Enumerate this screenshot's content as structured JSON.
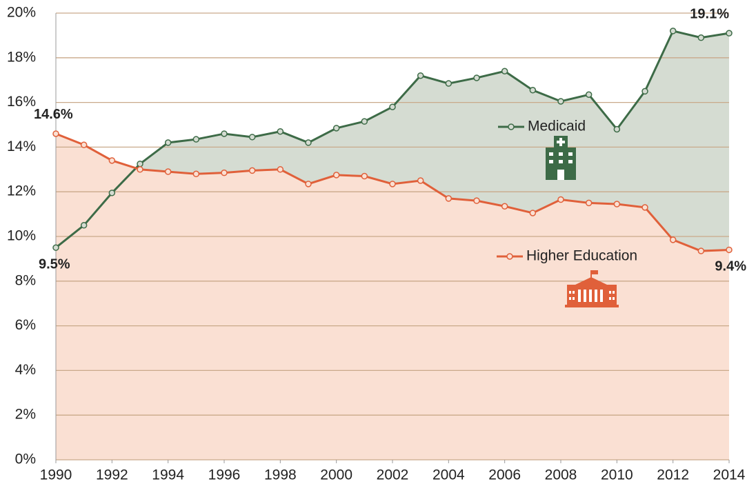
{
  "chart_data": {
    "type": "line",
    "x": [
      1990,
      1991,
      1992,
      1993,
      1994,
      1995,
      1996,
      1997,
      1998,
      1999,
      2000,
      2001,
      2002,
      2003,
      2004,
      2005,
      2006,
      2007,
      2008,
      2009,
      2010,
      2011,
      2012,
      2013,
      2014
    ],
    "series": [
      {
        "name": "Medicaid",
        "color": "#3d6b47",
        "area_color": "#d5dcd2",
        "values": [
          9.5,
          10.5,
          11.95,
          13.25,
          14.2,
          14.35,
          14.6,
          14.45,
          14.7,
          14.2,
          14.85,
          15.15,
          15.8,
          17.2,
          16.85,
          17.1,
          17.4,
          16.55,
          16.05,
          16.35,
          14.8,
          16.5,
          19.2,
          18.9,
          19.1
        ],
        "value_labels": [
          "9.5%",
          null,
          null,
          null,
          null,
          null,
          null,
          null,
          null,
          null,
          null,
          null,
          null,
          null,
          null,
          null,
          null,
          null,
          null,
          null,
          null,
          null,
          null,
          null,
          "19.1%"
        ]
      },
      {
        "name": "Higher Education",
        "color": "#e0603a",
        "area_color": "#fae0d3",
        "values": [
          14.6,
          14.1,
          13.4,
          13.0,
          12.9,
          12.8,
          12.85,
          12.95,
          13.0,
          12.35,
          12.75,
          12.7,
          12.35,
          12.5,
          11.7,
          11.6,
          11.35,
          11.05,
          11.65,
          11.5,
          11.45,
          11.3,
          9.85,
          9.35,
          9.4
        ],
        "value_labels": [
          "14.6%",
          null,
          null,
          null,
          null,
          null,
          null,
          null,
          null,
          null,
          null,
          null,
          null,
          null,
          null,
          null,
          null,
          null,
          null,
          null,
          null,
          null,
          null,
          null,
          "9.4%"
        ]
      }
    ],
    "xlim": [
      1990,
      2014
    ],
    "xticks": [
      1990,
      1992,
      1994,
      1996,
      1998,
      2000,
      2002,
      2004,
      2006,
      2008,
      2010,
      2012,
      2014
    ],
    "ylim": [
      0,
      20
    ],
    "yticks": [
      {
        "value": 0,
        "label": "0%"
      },
      {
        "value": 2,
        "label": "2%"
      },
      {
        "value": 4,
        "label": "4%"
      },
      {
        "value": 6,
        "label": "6%"
      },
      {
        "value": 8,
        "label": "8%"
      },
      {
        "value": 10,
        "label": "10%"
      },
      {
        "value": 12,
        "label": "12%"
      },
      {
        "value": 14,
        "label": "14%"
      },
      {
        "value": 16,
        "label": "16%"
      },
      {
        "value": 18,
        "label": "18%"
      },
      {
        "value": 20,
        "label": "20%"
      }
    ],
    "grid": true
  }
}
